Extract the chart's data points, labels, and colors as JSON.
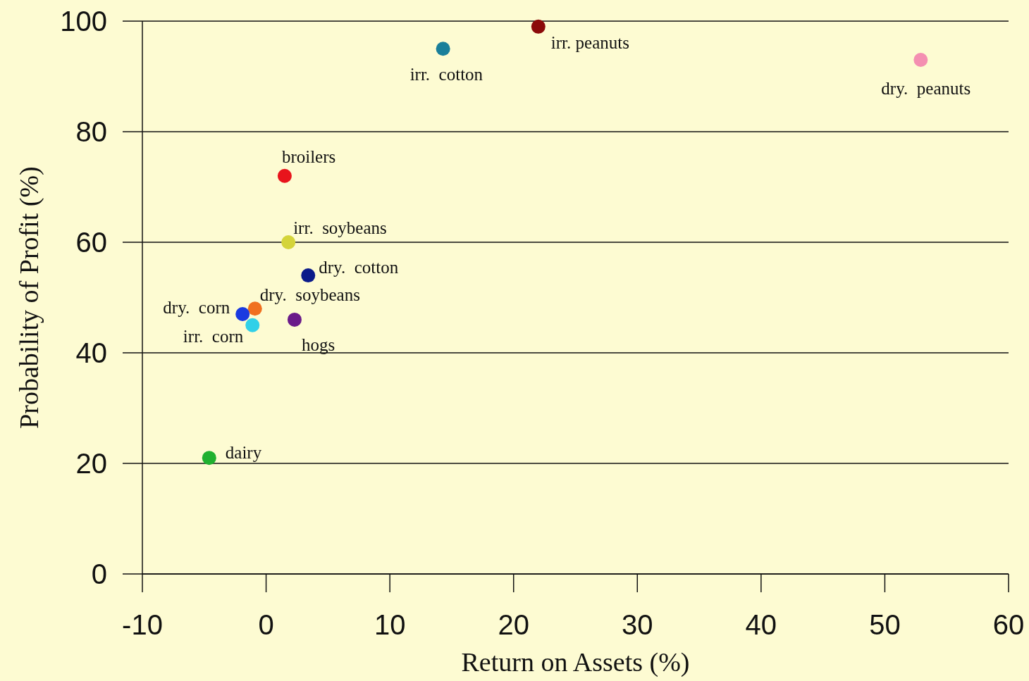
{
  "chart_data": {
    "type": "scatter",
    "xlabel": "Return on Assets (%)",
    "ylabel": "Probability of Profit (%)",
    "xlim": [
      -10,
      60
    ],
    "xticks": [
      -10,
      0,
      10,
      20,
      30,
      40,
      50,
      60
    ],
    "ylim": [
      0,
      100
    ],
    "yticks": [
      0,
      20,
      40,
      60,
      80,
      100
    ],
    "grid": "y",
    "marker": "circle",
    "series": [
      {
        "name": "irr. peanuts",
        "color": "#8b0a0a",
        "x": [
          22.0
        ],
        "values": [
          99
        ]
      },
      {
        "name": "irr.  cotton",
        "color": "#1a7f9a",
        "x": [
          14.3
        ],
        "values": [
          95
        ]
      },
      {
        "name": "dry.  peanuts",
        "color": "#f48fb1",
        "x": [
          52.9
        ],
        "values": [
          93
        ]
      },
      {
        "name": "broilers",
        "color": "#e8141c",
        "x": [
          1.5
        ],
        "values": [
          72
        ]
      },
      {
        "name": "irr.  soybeans",
        "color": "#d4d43a",
        "x": [
          1.8
        ],
        "values": [
          60
        ]
      },
      {
        "name": "dry.  cotton",
        "color": "#0a1a8a",
        "x": [
          3.4
        ],
        "values": [
          54
        ]
      },
      {
        "name": "dry.  soybeans",
        "color": "#f07020",
        "x": [
          -0.9
        ],
        "values": [
          48
        ]
      },
      {
        "name": "dry.  corn",
        "color": "#1a3ae0",
        "x": [
          -1.9
        ],
        "values": [
          47
        ]
      },
      {
        "name": "irr.  corn",
        "color": "#30d0e8",
        "x": [
          -1.1
        ],
        "values": [
          45
        ]
      },
      {
        "name": "hogs",
        "color": "#6a1a8a",
        "x": [
          2.3
        ],
        "values": [
          46
        ]
      },
      {
        "name": "dairy",
        "color": "#20b030",
        "x": [
          -4.6
        ],
        "values": [
          21
        ]
      }
    ]
  }
}
